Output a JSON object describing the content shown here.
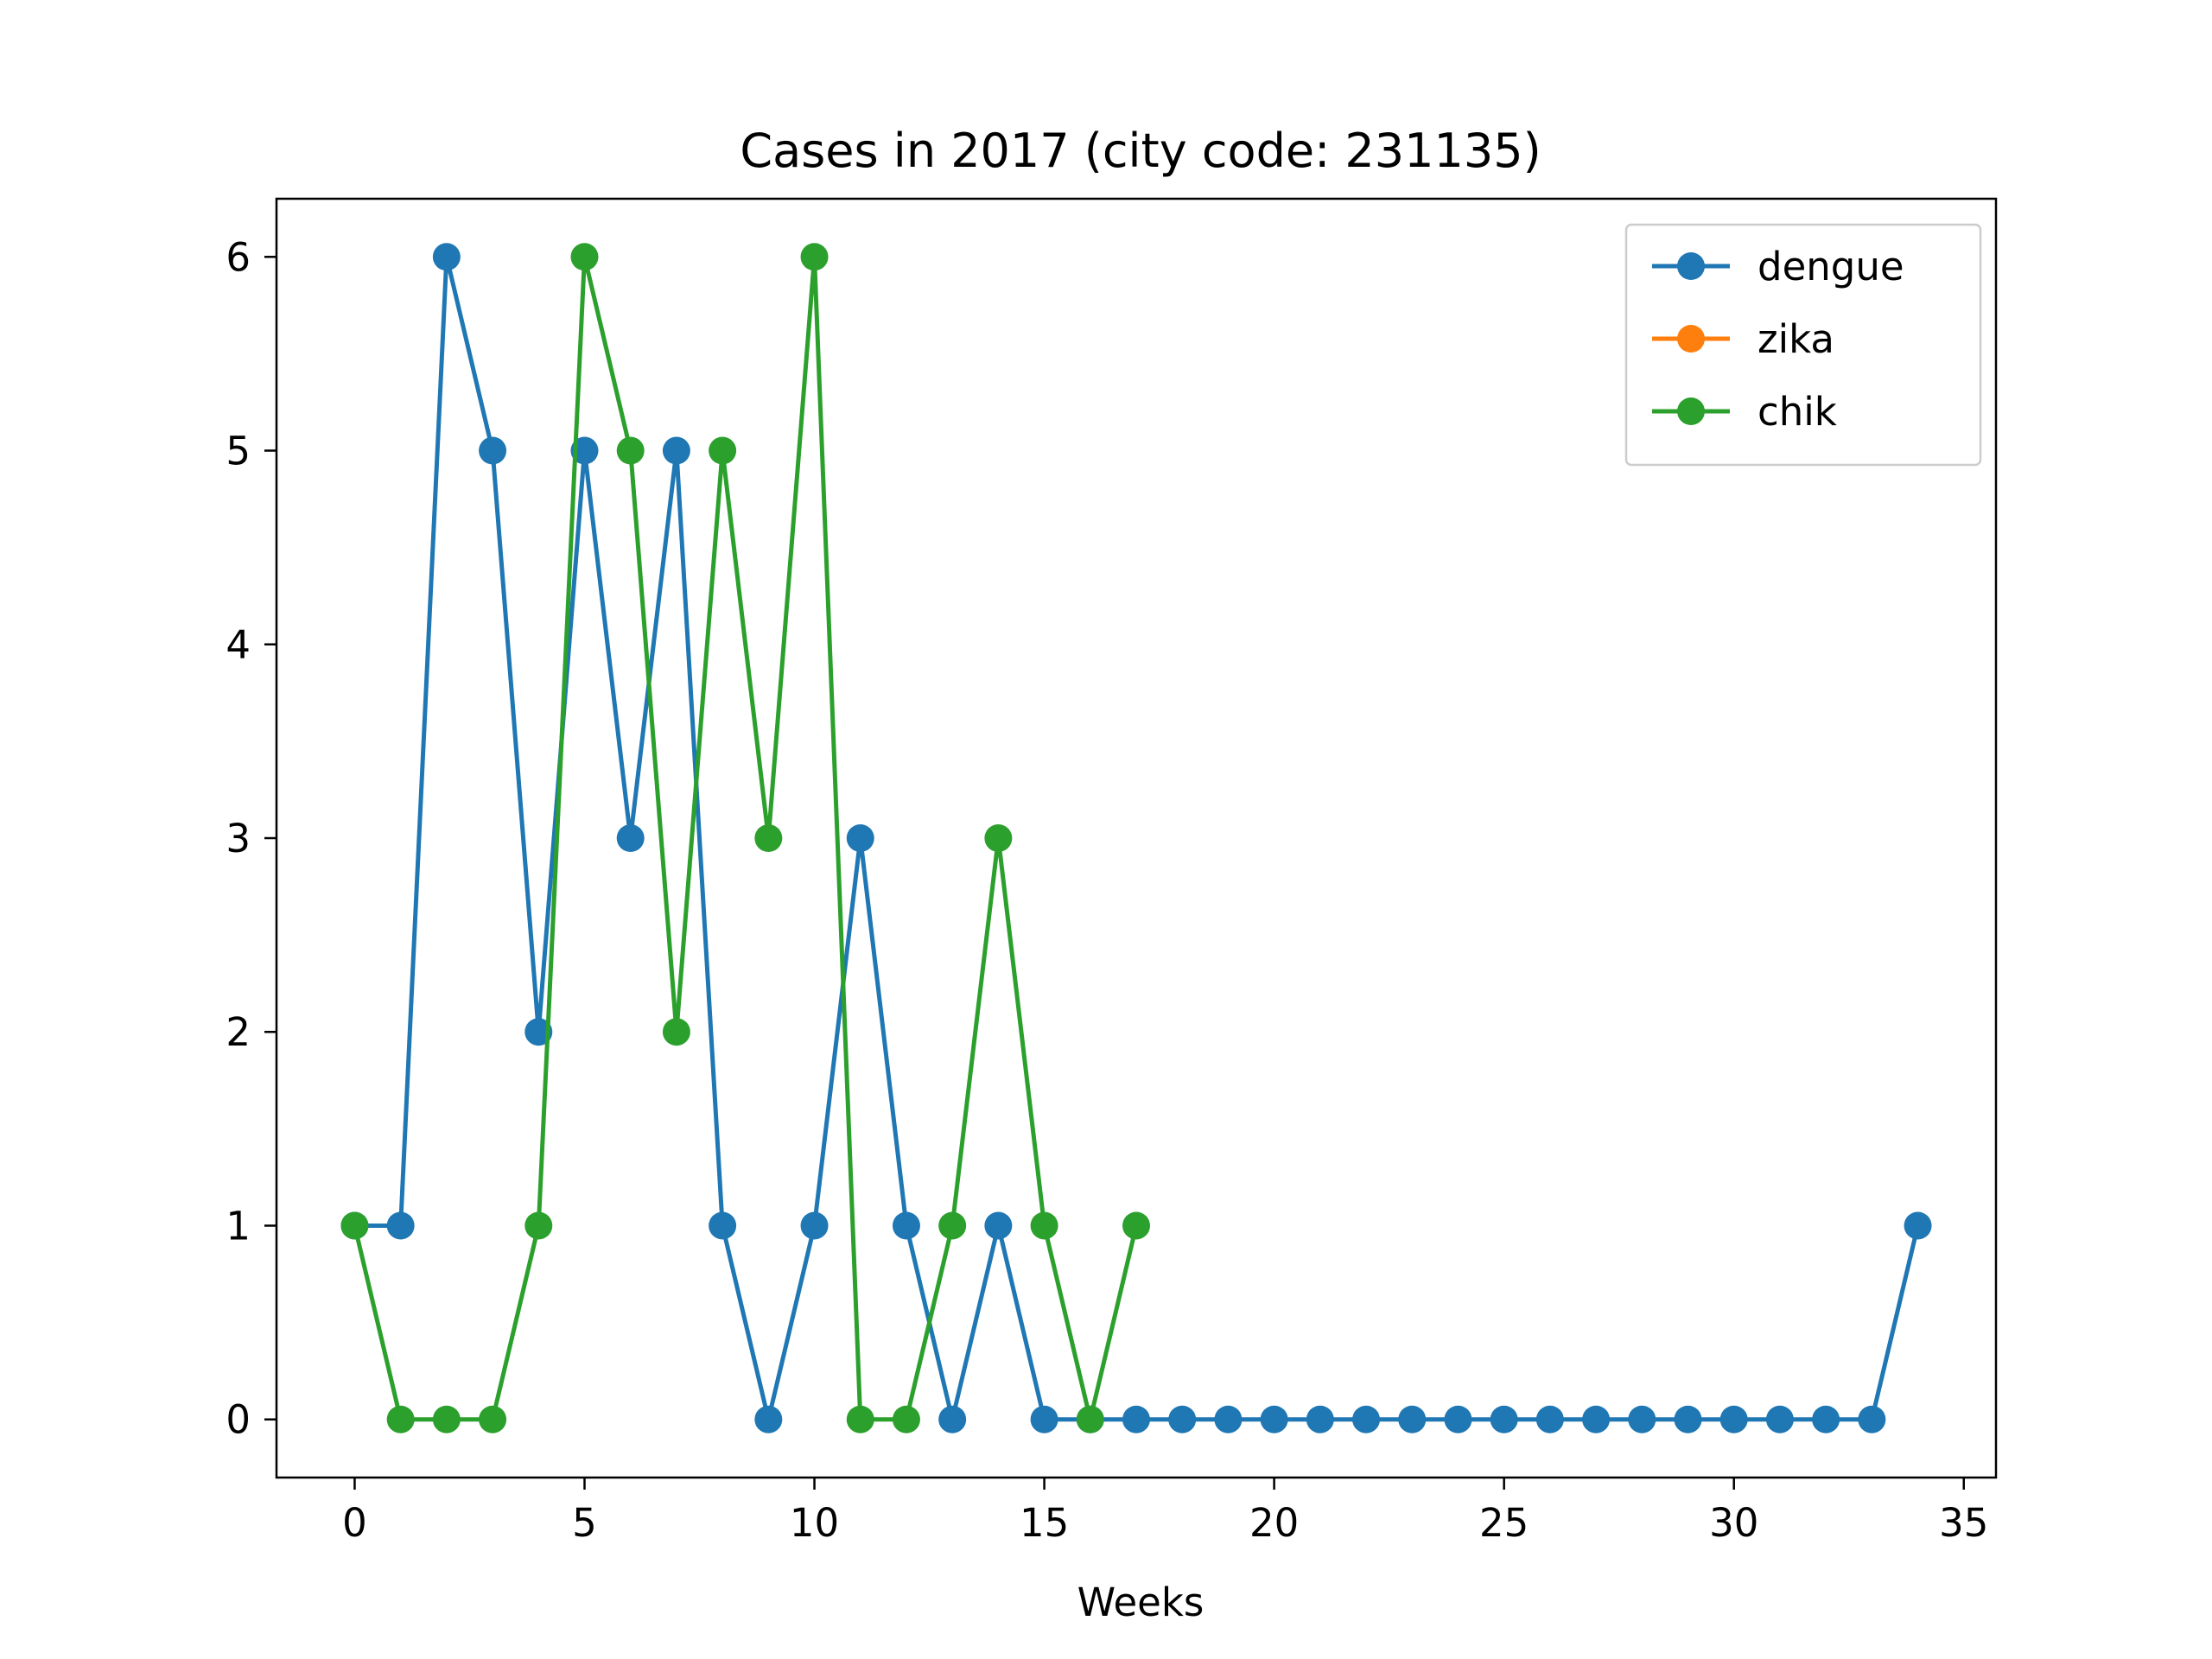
{
  "chart_data": {
    "type": "line",
    "title": "Cases in 2017 (city code: 231135)",
    "xlabel": "Weeks",
    "ylabel": "",
    "xlim": [
      -1.7,
      35.7
    ],
    "ylim": [
      -0.3,
      6.3
    ],
    "xticks": [
      0,
      5,
      10,
      15,
      20,
      25,
      30,
      35
    ],
    "yticks": [
      0,
      1,
      2,
      3,
      4,
      5,
      6
    ],
    "grid": false,
    "legend_position": "top-right",
    "markers": true,
    "series": [
      {
        "name": "dengue",
        "color": "#1f77b4",
        "x": [
          0,
          1,
          2,
          3,
          4,
          5,
          6,
          7,
          8,
          9,
          10,
          11,
          12,
          13,
          14,
          15,
          16,
          17,
          18,
          19,
          20,
          21,
          22,
          23,
          24,
          25,
          26,
          27,
          28,
          29,
          30,
          31,
          32,
          33,
          34
        ],
        "values": [
          1,
          1,
          6,
          5,
          2,
          5,
          3,
          5,
          1,
          0,
          1,
          3,
          1,
          0,
          1,
          0,
          0,
          0,
          0,
          0,
          0,
          0,
          0,
          0,
          0,
          0,
          0,
          0,
          0,
          0,
          0,
          0,
          0,
          0,
          1
        ]
      },
      {
        "name": "zika",
        "color": "#ff7f0e",
        "x": [],
        "values": []
      },
      {
        "name": "chik",
        "color": "#2ca02c",
        "x": [
          0,
          1,
          2,
          3,
          4,
          5,
          6,
          7,
          8,
          9,
          10,
          11,
          12,
          13,
          14,
          15,
          16,
          17
        ],
        "values": [
          1,
          0,
          0,
          0,
          1,
          6,
          5,
          2,
          5,
          3,
          6,
          0,
          0,
          1,
          3,
          1,
          0,
          1
        ]
      }
    ]
  }
}
